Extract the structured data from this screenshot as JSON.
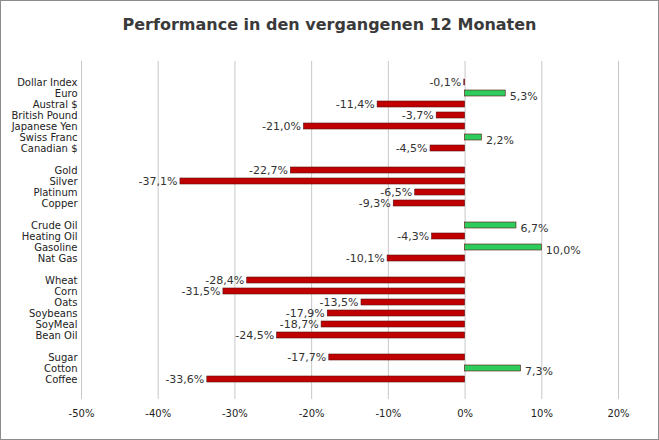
{
  "chart_data": {
    "type": "bar",
    "title": "Performance in den vergangenen 12 Monaten",
    "orientation": "horizontal",
    "grid": true,
    "data_labels": true,
    "categories": [
      "Dollar Index",
      "Euro",
      "Austral $",
      "British Pound",
      "Japanese Yen",
      "Swiss Franc",
      "Canadian $",
      null,
      "Gold",
      "Silver",
      "Platinum",
      "Copper",
      null,
      "Crude Oil",
      "Heating Oil",
      "Gasoline",
      "Nat Gas",
      null,
      "Wheat",
      "Corn",
      "Oats",
      "Soybeans",
      "SoyMeal",
      "Bean Oil",
      null,
      "Sugar",
      "Cotton",
      "Coffee"
    ],
    "values": [
      -0.1,
      5.3,
      -11.4,
      -3.7,
      -21.0,
      2.2,
      -4.5,
      null,
      -22.7,
      -37.1,
      -6.5,
      -9.3,
      null,
      6.7,
      -4.3,
      10.0,
      -10.1,
      null,
      -28.4,
      -31.5,
      -13.5,
      -17.9,
      -18.7,
      -24.5,
      null,
      -17.7,
      7.3,
      -33.6
    ],
    "value_labels": [
      "-0,1%",
      "5,3%",
      "-11,4%",
      "-3,7%",
      "-21,0%",
      "2,2%",
      "-4,5%",
      null,
      "-22,7%",
      "-37,1%",
      "-6,5%",
      "-9,3%",
      null,
      "6,7%",
      "-4,3%",
      "10,0%",
      "-10,1%",
      null,
      "-28,4%",
      "-31,5%",
      "-13,5%",
      "-17,9%",
      "-18,7%",
      "-24,5%",
      null,
      "-17,7%",
      "7,3%",
      "-33,6%"
    ],
    "colors": [
      "#c00000",
      "#2ecc5c",
      "#c00000",
      "#c00000",
      "#c00000",
      "#2ecc5c",
      "#c00000",
      null,
      "#c00000",
      "#c00000",
      "#c00000",
      "#c00000",
      null,
      "#2ecc5c",
      "#c00000",
      "#2ecc5c",
      "#c00000",
      null,
      "#c00000",
      "#c00000",
      "#c00000",
      "#c00000",
      "#c00000",
      "#c00000",
      null,
      "#c00000",
      "#2ecc5c",
      "#c00000"
    ],
    "xlim": [
      -50,
      20
    ],
    "xticks": [
      {
        "value": -50,
        "label": "-50%"
      },
      {
        "value": -40,
        "label": "-40%"
      },
      {
        "value": -30,
        "label": "-30%"
      },
      {
        "value": -20,
        "label": "-20%"
      },
      {
        "value": -10,
        "label": "-10%"
      },
      {
        "value": 0,
        "label": "0%"
      },
      {
        "value": 10,
        "label": "10%"
      },
      {
        "value": 20,
        "label": "20%"
      }
    ]
  }
}
